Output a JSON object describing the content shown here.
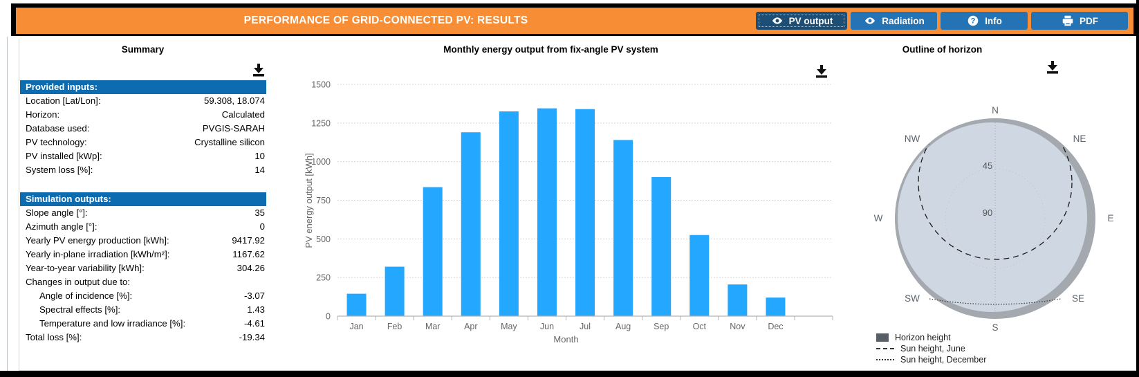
{
  "header": {
    "title": "PERFORMANCE OF GRID-CONNECTED PV: RESULTS",
    "buttons": [
      {
        "label": "PV output",
        "icon": "eye",
        "active": true
      },
      {
        "label": "Radiation",
        "icon": "eye",
        "active": false
      },
      {
        "label": "Info",
        "icon": "question",
        "active": false
      },
      {
        "label": "PDF",
        "icon": "printer",
        "active": false
      }
    ]
  },
  "colors": {
    "orange": "#f78d34",
    "table_header_blue": "#0d6cb0",
    "button_blue": "#2473b5",
    "button_active_blue": "#1d4f76",
    "bar_blue": "#23a7ff",
    "axis_text_gray": "#666666",
    "gridline_gray": "#d8d8d8",
    "axis_line_gray": "#b3b3b3",
    "horizon_fill": "#cfd8e2",
    "horizon_ring": "#a4a9b0",
    "legend_square_gray": "#595f66",
    "compass_text": "#5c6670"
  },
  "summary": {
    "title": "Summary",
    "sections": [
      {
        "header": "Provided inputs:",
        "rows": [
          {
            "label": "Location [Lat/Lon]:",
            "value": "59.308, 18.074",
            "indent": false
          },
          {
            "label": "Horizon:",
            "value": "Calculated",
            "indent": false
          },
          {
            "label": "Database used:",
            "value": "PVGIS-SARAH",
            "indent": false
          },
          {
            "label": "PV technology:",
            "value": "Crystalline silicon",
            "indent": false
          },
          {
            "label": "PV installed [kWp]:",
            "value": "10",
            "indent": false
          },
          {
            "label": "System loss [%]:",
            "value": "14",
            "indent": false
          }
        ]
      },
      {
        "header": "Simulation outputs:",
        "rows": [
          {
            "label": "Slope angle [°]:",
            "value": "35",
            "indent": false
          },
          {
            "label": "Azimuth angle [°]:",
            "value": "0",
            "indent": false
          },
          {
            "label": "Yearly PV energy production [kWh]:",
            "value": "9417.92",
            "indent": false
          },
          {
            "label": "Yearly in-plane irradiation [kWh/m²]:",
            "value": "1167.62",
            "indent": false
          },
          {
            "label": "Year-to-year variability [kWh]:",
            "value": "304.26",
            "indent": false
          },
          {
            "label": "Changes in output due to:",
            "value": "",
            "indent": false
          },
          {
            "label": "Angle of incidence [%]:",
            "value": "-3.07",
            "indent": true
          },
          {
            "label": "Spectral effects [%]:",
            "value": "1.43",
            "indent": true
          },
          {
            "label": "Temperature and low irradiance [%]:",
            "value": "-4.61",
            "indent": true
          },
          {
            "label": "Total loss [%]:",
            "value": "-19.34",
            "indent": false
          }
        ]
      }
    ]
  },
  "chart_data": {
    "type": "bar",
    "title": "Monthly energy output from fix-angle PV system",
    "categories": [
      "Jan",
      "Feb",
      "Mar",
      "Apr",
      "May",
      "Jun",
      "Jul",
      "Aug",
      "Sep",
      "Oct",
      "Nov",
      "Dec"
    ],
    "values": [
      145,
      320,
      835,
      1190,
      1325,
      1345,
      1340,
      1140,
      900,
      525,
      205,
      120
    ],
    "xlabel": "Month",
    "ylabel": "PV energy output [kWh]",
    "ylim": [
      0,
      1500
    ],
    "ytick_step": 250,
    "grid": true,
    "legend": false
  },
  "horizon": {
    "title": "Outline of horizon",
    "compass": [
      "N",
      "NE",
      "E",
      "SE",
      "S",
      "SW",
      "W",
      "NW"
    ],
    "radial_labels": [
      "45",
      "90"
    ],
    "legend": [
      {
        "label": "Horizon height",
        "style": "square"
      },
      {
        "label": "Sun height, June",
        "style": "dashed"
      },
      {
        "label": "Sun height, December",
        "style": "dotted"
      }
    ]
  }
}
